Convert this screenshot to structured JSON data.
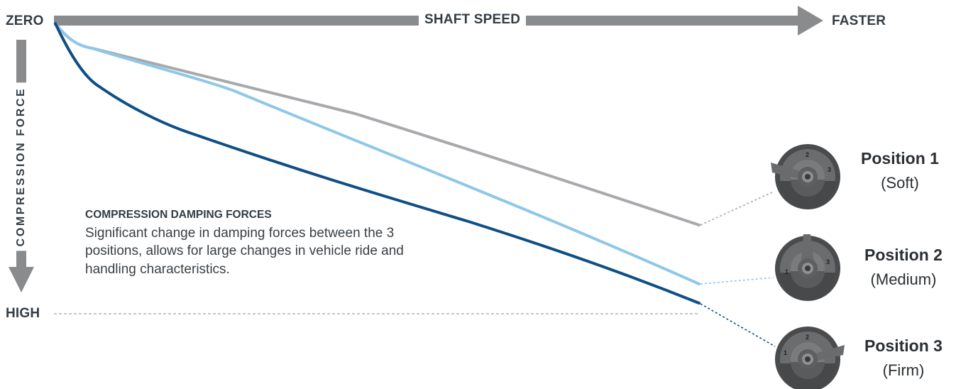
{
  "axes": {
    "origin_label": "ZERO",
    "x_label": "SHAFT SPEED",
    "x_end_label": "FASTER",
    "y_label": "COMPRESSION FORCE",
    "y_end_label": "HIGH"
  },
  "note": {
    "title": "COMPRESSION DAMPING FORCES",
    "body": "Significant change in damping forces between the 3 positions, allows for large changes in vehicle ride and handling characteristics."
  },
  "positions": [
    {
      "name": "Position 1",
      "desc": "(Soft)",
      "dial": "1",
      "color": "#a8a9ad"
    },
    {
      "name": "Position 2",
      "desc": "(Medium)",
      "dial": "2",
      "color": "#8fc7e8"
    },
    {
      "name": "Position 3",
      "desc": "(Firm)",
      "dial": "3",
      "color": "#0f4f86"
    }
  ],
  "dial_numbers": [
    "1",
    "2",
    "3"
  ],
  "colors": {
    "axis": "#8a8b8d",
    "text": "#333c44",
    "soft": "#a8a9ad",
    "medium": "#8fc7e8",
    "firm": "#0f4f86",
    "dial_dark": "#4a4b4d",
    "dial_mid": "#6d6e70"
  },
  "icons": [
    "knob-position-1-icon",
    "knob-position-2-icon",
    "knob-position-3-icon",
    "arrow-right-icon",
    "arrow-down-icon"
  ]
}
